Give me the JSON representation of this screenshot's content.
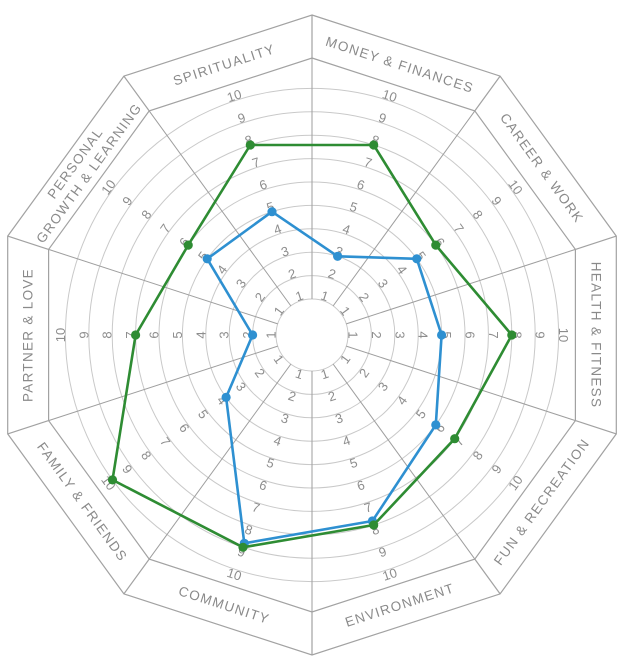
{
  "chart_data": {
    "type": "radar",
    "title": "",
    "scale": {
      "min": 1,
      "max": 10,
      "ticks": [
        1,
        2,
        3,
        4,
        5,
        6,
        7,
        8,
        9,
        10
      ]
    },
    "grid": "circular-rings-with-decagon-frame",
    "legend": "none",
    "categories": [
      {
        "id": "spirituality",
        "lines": [
          "SPIRITUALITY"
        ]
      },
      {
        "id": "money-finances",
        "lines": [
          "MONEY & FINANCES"
        ]
      },
      {
        "id": "career-work",
        "lines": [
          "CAREER & WORK"
        ]
      },
      {
        "id": "health-fitness",
        "lines": [
          "HEALTH & FITNESS"
        ]
      },
      {
        "id": "fun-recreation",
        "lines": [
          "FUN & RECREATION"
        ]
      },
      {
        "id": "environment",
        "lines": [
          "ENVIRONMENT"
        ]
      },
      {
        "id": "community",
        "lines": [
          "COMMUNITY"
        ]
      },
      {
        "id": "family-friends",
        "lines": [
          "FAMILY & FRIENDS"
        ]
      },
      {
        "id": "partner-love",
        "lines": [
          "PARTNER & LOVE"
        ]
      },
      {
        "id": "personal-growth-learning",
        "lines": [
          "PERSONAL",
          "GROWTH & LEARNING"
        ]
      }
    ],
    "series": [
      {
        "id": "blue",
        "color": "#2E90D1",
        "values": [
          5,
          3,
          5,
          5,
          6,
          8,
          9,
          4,
          2,
          5
        ]
      },
      {
        "id": "green",
        "color": "#2E8C33",
        "values": [
          8,
          8,
          6,
          8,
          7,
          8,
          9,
          10,
          7,
          6
        ]
      }
    ]
  },
  "colors": {
    "background": "#ffffff",
    "ring": "#c9c9c9",
    "spoke": "#9e9e9e",
    "frame": "#a2a2a2",
    "tick_text": "#8d8d8d",
    "category_text": "#8a8a8a"
  }
}
